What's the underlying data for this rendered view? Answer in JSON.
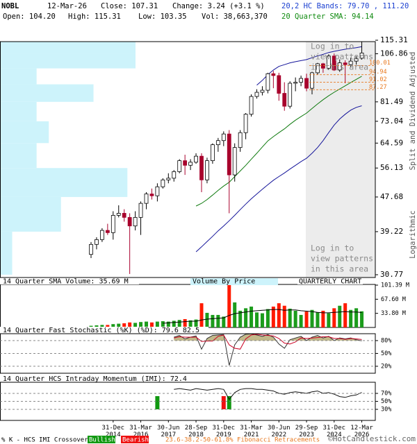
{
  "chart_data": [
    {
      "type": "candlestick",
      "title": "NOBL",
      "header": {
        "date": "12-Mar-26",
        "close": "Close: 107.31",
        "change": "Change: 3.24 (+3.1 %)",
        "bands": "20,2 HC Bands: 79.70 , 111.20",
        "open": "Open: 104.20",
        "high": "High: 115.31",
        "low": "Low: 103.35",
        "volume": "Vol: 38,663,370",
        "sma": "20 Quarter SMA: 94.14"
      },
      "y_axis_labels": [
        "Split and Dividend Adjusted",
        "Logarithmic"
      ],
      "log_scale": true,
      "ylim": [
        30.77,
        115.31
      ],
      "yticks": [
        30.77,
        39.22,
        47.68,
        56.13,
        64.59,
        73.04,
        81.49,
        106.86,
        115.31
      ],
      "categories": [
        null,
        null,
        null,
        null,
        "31-Dec 2014",
        null,
        null,
        null,
        null,
        "31-Mar 2016",
        null,
        null,
        null,
        null,
        "30-Jun 2017",
        null,
        null,
        null,
        null,
        "28-Sep 2018",
        null,
        null,
        null,
        null,
        "31-Dec 2019",
        null,
        null,
        null,
        null,
        "31-Mar 2021",
        null,
        null,
        null,
        null,
        "30-Jun 2022",
        null,
        null,
        null,
        null,
        "29-Sep 2023",
        null,
        null,
        null,
        null,
        "31-Dec 2024",
        null,
        null,
        null,
        null,
        "12-Mar 2026"
      ],
      "open": [
        34.5,
        36.5,
        37.5,
        39.5,
        39.0,
        43.0,
        43.5,
        42.5,
        40.5,
        42.5,
        46.0,
        48.5,
        48.0,
        50.5,
        52.5,
        53.0,
        55.0,
        58.5,
        57.0,
        58.0,
        60.0,
        52.5,
        58.5,
        64.0,
        65.5,
        68.0,
        54.0,
        63.0,
        68.5,
        76.0,
        84.0,
        86.0,
        87.0,
        95.5,
        94.5,
        85.5,
        79.5,
        90.5,
        91.0,
        93.0,
        88.0,
        96.0,
        101.0,
        98.5,
        105.5,
        97.5,
        101.5,
        100.5,
        102.5,
        104.2
      ],
      "high": [
        37.0,
        38.0,
        40.0,
        41.0,
        44.0,
        45.5,
        44.5,
        43.5,
        44.0,
        46.5,
        49.0,
        50.0,
        51.5,
        53.0,
        54.5,
        55.5,
        59.0,
        60.5,
        59.0,
        61.0,
        61.0,
        59.5,
        64.5,
        66.5,
        69.0,
        69.5,
        64.5,
        69.5,
        76.5,
        85.0,
        87.5,
        89.0,
        96.0,
        97.0,
        96.0,
        91.0,
        91.5,
        93.5,
        94.5,
        95.5,
        96.5,
        101.5,
        101.5,
        106.5,
        107.0,
        103.5,
        103.0,
        104.5,
        105.5,
        115.31
      ],
      "low": [
        33.8,
        35.5,
        37.0,
        38.5,
        37.5,
        42.5,
        41.5,
        30.9,
        39.5,
        38.5,
        44.5,
        47.0,
        46.5,
        50.0,
        51.5,
        52.0,
        54.5,
        54.0,
        55.5,
        57.5,
        49.0,
        51.5,
        57.5,
        61.5,
        63.5,
        43.5,
        52.0,
        61.5,
        66.0,
        75.0,
        83.0,
        84.5,
        85.5,
        88.0,
        82.0,
        77.5,
        78.5,
        86.5,
        89.0,
        86.5,
        85.0,
        95.0,
        96.0,
        97.5,
        97.0,
        96.5,
        90.5,
        99.0,
        100.5,
        103.35
      ],
      "close": [
        36.5,
        37.5,
        39.5,
        39.0,
        43.0,
        43.5,
        42.5,
        40.5,
        42.5,
        46.0,
        48.5,
        48.0,
        50.5,
        52.5,
        53.0,
        55.0,
        58.5,
        57.0,
        58.0,
        60.0,
        52.5,
        58.5,
        64.0,
        65.5,
        68.0,
        54.0,
        63.0,
        68.5,
        76.0,
        84.0,
        86.0,
        87.0,
        95.5,
        94.5,
        85.5,
        79.5,
        90.5,
        91.0,
        93.0,
        88.0,
        96.0,
        101.0,
        98.5,
        105.5,
        97.5,
        101.5,
        100.5,
        102.5,
        104.07,
        107.31
      ],
      "up_color": "#ffffff",
      "down_color": "#a8002c",
      "sma": {
        "color": "#0e7a0e",
        "values": [
          null,
          null,
          null,
          null,
          null,
          null,
          null,
          null,
          null,
          null,
          null,
          null,
          null,
          null,
          null,
          null,
          null,
          null,
          null,
          45.3,
          46.0,
          47.0,
          48.2,
          49.5,
          50.7,
          51.8,
          53.5,
          55.2,
          57.0,
          59.0,
          61.0,
          63.2,
          65.4,
          67.0,
          68.5,
          70.0,
          71.8,
          73.5,
          75.0,
          76.5,
          78.5,
          80.5,
          82.5,
          84.3,
          86.0,
          87.6,
          89.2,
          90.9,
          92.5,
          94.14
        ]
      },
      "hc_bands": {
        "color": "#14149a",
        "upper": [
          null,
          null,
          null,
          null,
          null,
          null,
          null,
          null,
          null,
          null,
          null,
          null,
          null,
          null,
          null,
          null,
          null,
          null,
          null,
          null,
          null,
          null,
          null,
          null,
          null,
          null,
          null,
          null,
          null,
          null,
          89.5,
          92,
          95,
          97.5,
          99.5,
          100.5,
          101.5,
          102.2,
          102.8,
          103.4,
          104.5,
          105.5,
          106.5,
          107.6,
          108.3,
          109,
          109.6,
          110.1,
          110.6,
          111.2
        ],
        "lower": [
          null,
          null,
          null,
          null,
          null,
          null,
          null,
          null,
          null,
          null,
          null,
          null,
          null,
          null,
          null,
          null,
          null,
          null,
          null,
          35.0,
          36.0,
          37.1,
          38.2,
          39.4,
          40.5,
          41.7,
          43.0,
          44.4,
          45.8,
          47.2,
          48.5,
          49.8,
          51.1,
          52.4,
          53.5,
          54.6,
          55.8,
          57.0,
          58.2,
          59.3,
          61.0,
          63.0,
          65.5,
          68.5,
          71.5,
          74.0,
          76.0,
          77.8,
          79.0,
          79.7
        ]
      },
      "fibonacci": {
        "name": "23.6-38.2-50-61.8% Fibonacci Retracements",
        "color": "#e8781e",
        "levels": [
          100.01,
          94.94,
          91.02,
          87.27
        ]
      },
      "volume_by_price": {
        "title": "Volume By Price",
        "color": "#cdf3fb",
        "bins": [
          30.77,
          39.22,
          47.68,
          56.13,
          64.59,
          73.04,
          81.49,
          89.95,
          98.4,
          106.86,
          115.31
        ],
        "values": [
          9,
          45,
          94,
          27,
          36,
          27,
          69,
          27,
          100,
          100
        ]
      },
      "locked_note": [
        "Log in to",
        "view patterns",
        "in this area"
      ]
    },
    {
      "type": "bar",
      "title": "14 Quarter SMA Volume: 35.69 M",
      "subtitle": "QUARTERLY CHART",
      "ylim": [
        0,
        101.39
      ],
      "yticks": [
        {
          "value": 33.8,
          "label": "33.80 M"
        },
        {
          "value": 67.6,
          "label": "67.60 M"
        },
        {
          "value": 101.39,
          "label": "101.39 M"
        }
      ],
      "values": [
        4,
        5,
        6,
        6,
        8,
        9,
        10,
        12,
        11,
        13,
        14,
        12,
        14,
        15,
        14,
        16,
        18,
        20,
        17,
        19,
        58,
        35,
        30,
        30,
        26,
        101.39,
        60,
        40,
        46,
        50,
        36,
        34,
        44,
        50,
        58,
        52,
        45,
        40,
        30,
        38,
        42,
        36,
        40,
        34,
        46,
        52,
        58,
        42,
        46,
        38.66
      ],
      "up_color": "#1c9c1c",
      "down_color": "#ff1a00",
      "sma": {
        "color": "#000000",
        "values": [
          null,
          null,
          null,
          null,
          null,
          null,
          null,
          null,
          null,
          null,
          null,
          null,
          null,
          10,
          11,
          12,
          13,
          14,
          15,
          15,
          18,
          20,
          21,
          22,
          23,
          29,
          33,
          35,
          37,
          39,
          40,
          41,
          42,
          43,
          43,
          41,
          42,
          42,
          40,
          39,
          38,
          36,
          35,
          35,
          36,
          37,
          38,
          37,
          37,
          35.69
        ]
      }
    },
    {
      "type": "line",
      "title": "14 Quarter Fast Stochastic (%K) (%D): 79.6 82.5",
      "ylim": [
        0,
        100
      ],
      "grid": true,
      "yticks": [
        {
          "value": 20,
          "label": "20%"
        },
        {
          "value": 50,
          "label": "50%"
        },
        {
          "value": 80,
          "label": "80%"
        }
      ],
      "fill_above": {
        "level": 80,
        "color": "#c2b98a"
      },
      "series": [
        {
          "color": "#333333",
          "values": [
            null,
            null,
            null,
            null,
            null,
            null,
            null,
            null,
            null,
            null,
            null,
            null,
            null,
            null,
            null,
            88,
            92,
            84,
            88,
            91,
            60,
            85,
            92,
            93,
            94,
            22,
            70,
            88,
            95,
            96,
            93,
            90,
            94,
            88,
            72,
            62,
            82,
            86,
            90,
            80,
            88,
            92,
            86,
            90,
            80,
            86,
            84,
            86,
            82,
            79.6
          ]
        },
        {
          "color": "#cc0022",
          "values": [
            null,
            null,
            null,
            null,
            null,
            null,
            null,
            null,
            null,
            null,
            null,
            null,
            null,
            null,
            null,
            86,
            89,
            88,
            88,
            88,
            78,
            79,
            79,
            90,
            93,
            70,
            62,
            60,
            84,
            93,
            95,
            93,
            92,
            91,
            85,
            74,
            72,
            77,
            86,
            85,
            86,
            87,
            89,
            89,
            85,
            85,
            83,
            85,
            84,
            82.5
          ]
        }
      ]
    },
    {
      "type": "line",
      "title": "14 Quarter HCS Intraday Momentum (IMI): 72.4",
      "ylim": [
        0,
        100
      ],
      "grid": true,
      "yticks": [
        {
          "value": 30,
          "label": "30%"
        },
        {
          "value": 50,
          "label": "50%"
        },
        {
          "value": 70,
          "label": "70%"
        }
      ],
      "series": [
        {
          "color": "#111111",
          "values": [
            null,
            null,
            null,
            null,
            null,
            null,
            null,
            null,
            null,
            null,
            null,
            null,
            null,
            null,
            null,
            80,
            82,
            80,
            78,
            82,
            80,
            78,
            80,
            82,
            80,
            55,
            72,
            80,
            82,
            82,
            80,
            80,
            78,
            76,
            70,
            68,
            72,
            74,
            72,
            70,
            74,
            76,
            70,
            72,
            68,
            62,
            60,
            64,
            66,
            72.4
          ]
        }
      ],
      "crossover": {
        "name": "% K - HCS IMI Crossover,",
        "bullish": {
          "label": "Bullish",
          "color": "#119911"
        },
        "bearish": {
          "label": "Bearish",
          "color": "#ee1111"
        },
        "values": [
          null,
          null,
          null,
          null,
          null,
          null,
          null,
          null,
          null,
          null,
          null,
          null,
          "Bullish",
          null,
          null,
          null,
          null,
          null,
          null,
          null,
          null,
          null,
          null,
          null,
          "Bearish",
          "Bullish",
          null,
          null,
          null,
          null,
          null,
          null,
          null,
          null,
          null,
          null,
          null,
          null,
          null,
          null,
          null,
          null,
          null,
          null,
          null,
          null,
          null,
          null,
          null,
          null
        ]
      }
    }
  ],
  "footer": "©HotCandlestick.com"
}
